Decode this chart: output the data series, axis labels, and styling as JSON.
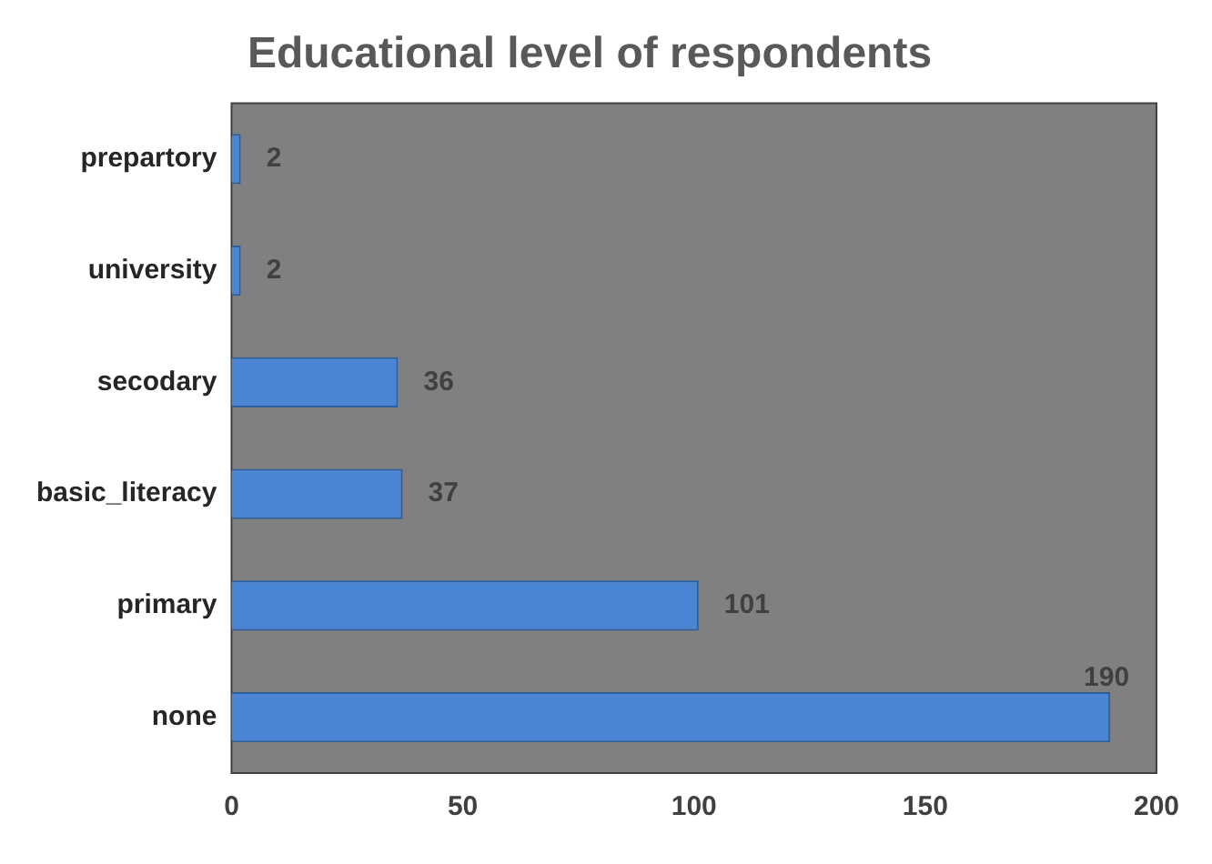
{
  "chart_data": {
    "type": "bar",
    "orientation": "horizontal",
    "title": "Educational level of respondents",
    "categories": [
      "prepartory",
      "university",
      "secodary",
      "basic_literacy",
      "primary",
      "none"
    ],
    "values": [
      2,
      2,
      36,
      37,
      101,
      190
    ],
    "color": "#4a86d4",
    "xlim": [
      0,
      200
    ],
    "xticks": [
      0,
      50,
      100,
      150,
      200
    ],
    "grid": false,
    "legend": false,
    "data_labels": true
  }
}
